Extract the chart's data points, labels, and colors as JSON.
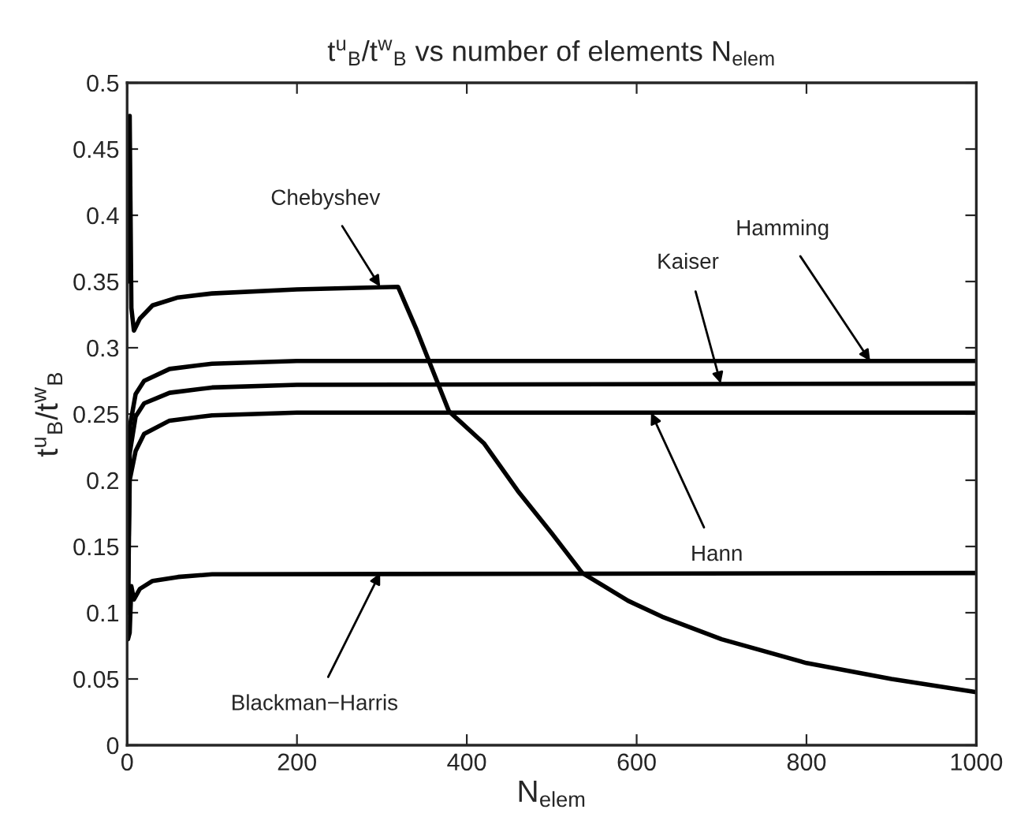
{
  "chart_data": {
    "type": "line",
    "title": "t$^{u}$$_{B}$/t$^{w}$$_{B}$ vs number of elements N$_{elem}$",
    "xlabel": "N$_{elem}$",
    "ylabel": "t$^{u}$$_{B}$/t$^{w}$$_{B}$",
    "xlim": [
      0,
      1000
    ],
    "xticks": [
      0,
      200,
      400,
      600,
      800,
      1000
    ],
    "ylim": [
      0,
      0.5
    ],
    "yticks": [
      0,
      0.05,
      0.1,
      0.15,
      0.2,
      0.25,
      0.3,
      0.35,
      0.4,
      0.45,
      0.5
    ],
    "grid": false,
    "legend": false,
    "marker": "none",
    "line_style": "solid",
    "series": [
      {
        "color": "#000000",
        "x": [
          1,
          3,
          5,
          8,
          15,
          30,
          60,
          100,
          200,
          319,
          340,
          379,
          420,
          460,
          500,
          536,
          590,
          630,
          700,
          800,
          900,
          1000
        ],
        "values": [
          0.35,
          0.475,
          0.33,
          0.313,
          0.322,
          0.332,
          0.338,
          0.341,
          0.344,
          0.346,
          0.315,
          0.252,
          0.228,
          0.192,
          0.16,
          0.13,
          0.109,
          0.097,
          0.08,
          0.062,
          0.05,
          0.04
        ]
      },
      {
        "color": "#000000",
        "x": [
          1,
          3,
          10,
          20,
          50,
          100,
          200,
          1000
        ],
        "values": [
          0.12,
          0.24,
          0.265,
          0.275,
          0.284,
          0.288,
          0.29,
          0.29
        ]
      },
      {
        "color": "#000000",
        "x": [
          1,
          3,
          10,
          20,
          50,
          100,
          200,
          1000
        ],
        "values": [
          0.11,
          0.22,
          0.248,
          0.258,
          0.266,
          0.27,
          0.272,
          0.273
        ]
      },
      {
        "color": "#000000",
        "x": [
          1,
          3,
          10,
          20,
          50,
          100,
          200,
          1000
        ],
        "values": [
          0.1,
          0.2,
          0.222,
          0.235,
          0.245,
          0.249,
          0.251,
          0.251
        ]
      },
      {
        "color": "#000000",
        "x": [
          1,
          3,
          5,
          8,
          15,
          30,
          60,
          100,
          1000
        ],
        "values": [
          0.08,
          0.085,
          0.12,
          0.11,
          0.118,
          0.124,
          0.127,
          0.129,
          0.13
        ]
      }
    ],
    "annotations": [
      {
        "text": "Chebyshev",
        "x": 298,
        "y": 0.346
      },
      {
        "text": "Hamming",
        "x": 875,
        "y": 0.29
      },
      {
        "text": "Kaiser",
        "x": 699,
        "y": 0.273
      },
      {
        "text": "Hann",
        "x": 617,
        "y": 0.251
      },
      {
        "text": "Blackman−Harris",
        "x": 298,
        "y": 0.13
      }
    ]
  }
}
